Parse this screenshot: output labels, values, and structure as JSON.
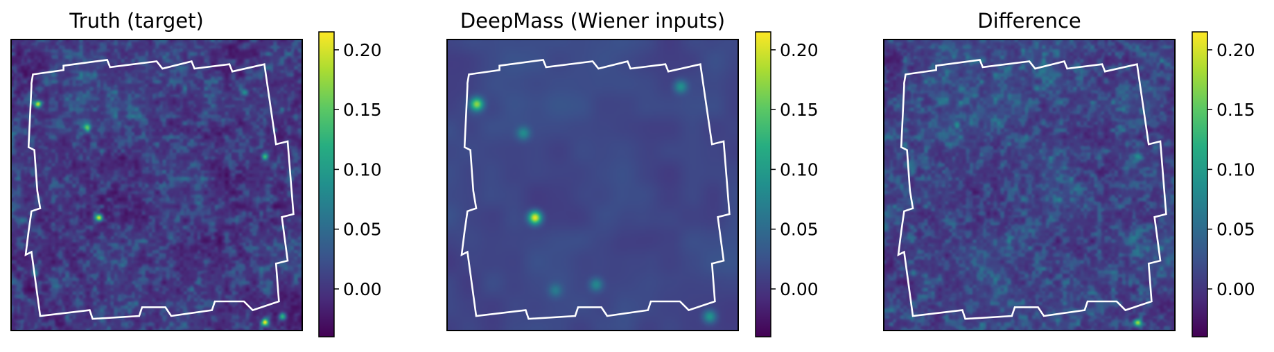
{
  "chart_data": [
    {
      "type": "heatmap",
      "title": "Truth (target)",
      "colorbar": {
        "ticks": [
          0.0,
          0.05,
          0.1,
          0.15,
          0.2
        ],
        "tick_labels": [
          "0.00",
          "0.05",
          "0.10",
          "0.15",
          "0.20"
        ],
        "range": [
          -0.04,
          0.215
        ],
        "colormap": "viridis"
      },
      "background_level": 0.0,
      "texture": "fine",
      "peaks": [
        {
          "x": 0.3,
          "y": 0.61,
          "value": 0.215
        },
        {
          "x": 0.09,
          "y": 0.22,
          "value": 0.2
        },
        {
          "x": 0.87,
          "y": 0.97,
          "value": 0.2
        },
        {
          "x": 0.26,
          "y": 0.3,
          "value": 0.12
        },
        {
          "x": 0.87,
          "y": 0.4,
          "value": 0.14
        },
        {
          "x": 0.8,
          "y": 0.18,
          "value": 0.1
        },
        {
          "x": 0.08,
          "y": 0.8,
          "value": 0.1
        },
        {
          "x": 0.93,
          "y": 0.95,
          "value": 0.13
        }
      ]
    },
    {
      "type": "heatmap",
      "title": "DeepMass (Wiener inputs)",
      "colorbar": {
        "ticks": [
          0.0,
          0.05,
          0.1,
          0.15,
          0.2
        ],
        "tick_labels": [
          "0.00",
          "0.05",
          "0.10",
          "0.15",
          "0.20"
        ],
        "range": [
          -0.04,
          0.215
        ],
        "colormap": "viridis"
      },
      "background_level": 0.015,
      "texture": "smooth",
      "peaks": [
        {
          "x": 0.3,
          "y": 0.61,
          "value": 0.215
        },
        {
          "x": 0.1,
          "y": 0.22,
          "value": 0.17
        },
        {
          "x": 0.26,
          "y": 0.32,
          "value": 0.08
        },
        {
          "x": 0.8,
          "y": 0.16,
          "value": 0.09
        },
        {
          "x": 0.51,
          "y": 0.84,
          "value": 0.08
        },
        {
          "x": 0.37,
          "y": 0.86,
          "value": 0.06
        },
        {
          "x": 0.9,
          "y": 0.95,
          "value": 0.1
        }
      ]
    },
    {
      "type": "heatmap",
      "title": "Difference",
      "colorbar": {
        "ticks": [
          0.0,
          0.05,
          0.1,
          0.15,
          0.2
        ],
        "tick_labels": [
          "0.00",
          "0.05",
          "0.10",
          "0.15",
          "0.20"
        ],
        "range": [
          -0.04,
          0.215
        ],
        "colormap": "viridis"
      },
      "background_level": 0.01,
      "texture": "fine",
      "peaks": [
        {
          "x": 0.87,
          "y": 0.97,
          "value": 0.17
        },
        {
          "x": 0.25,
          "y": 0.29,
          "value": 0.08
        },
        {
          "x": 0.1,
          "y": 0.8,
          "value": 0.08
        },
        {
          "x": 0.87,
          "y": 0.4,
          "value": 0.07
        },
        {
          "x": 0.6,
          "y": 0.55,
          "value": 0.05
        }
      ]
    }
  ],
  "colors": {
    "outline": "#ffffff",
    "frame": "#000000"
  }
}
